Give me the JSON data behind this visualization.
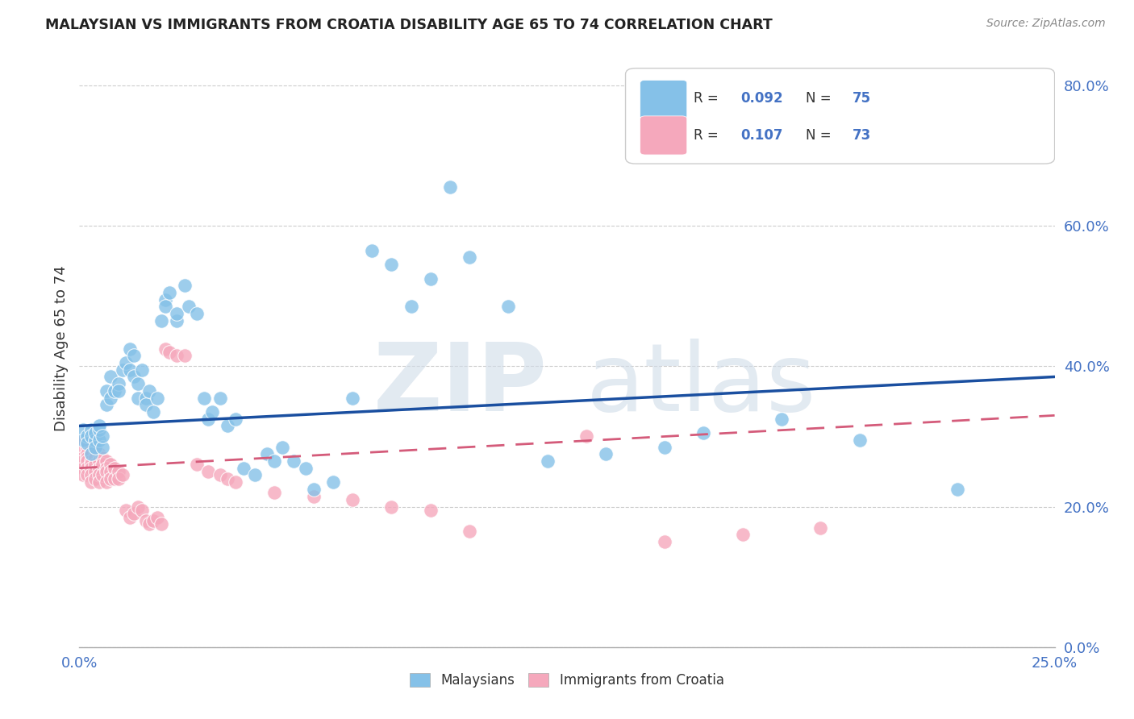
{
  "title": "MALAYSIAN VS IMMIGRANTS FROM CROATIA DISABILITY AGE 65 TO 74 CORRELATION CHART",
  "source": "Source: ZipAtlas.com",
  "ylabel_label": "Disability Age 65 to 74",
  "xlim": [
    0.0,
    0.25
  ],
  "ylim": [
    0.0,
    0.85
  ],
  "xticks": [
    0.0,
    0.25
  ],
  "yticks": [
    0.0,
    0.2,
    0.4,
    0.6,
    0.8
  ],
  "legend1_r": "0.092",
  "legend1_n": "75",
  "legend2_r": "0.107",
  "legend2_n": "73",
  "blue_color": "#85c1e8",
  "pink_color": "#f5a8bc",
  "line_blue": "#1a4fa0",
  "line_pink": "#d45b7a",
  "watermark_zip": "ZIP",
  "watermark_atlas": "atlas",
  "blue_scatter_x": [
    0.001,
    0.001,
    0.002,
    0.002,
    0.003,
    0.003,
    0.003,
    0.004,
    0.004,
    0.004,
    0.005,
    0.005,
    0.005,
    0.006,
    0.006,
    0.007,
    0.007,
    0.008,
    0.008,
    0.009,
    0.01,
    0.01,
    0.011,
    0.012,
    0.013,
    0.013,
    0.014,
    0.014,
    0.015,
    0.015,
    0.016,
    0.017,
    0.017,
    0.018,
    0.019,
    0.02,
    0.021,
    0.022,
    0.022,
    0.023,
    0.025,
    0.025,
    0.027,
    0.028,
    0.03,
    0.032,
    0.033,
    0.034,
    0.036,
    0.038,
    0.04,
    0.042,
    0.045,
    0.048,
    0.05,
    0.052,
    0.055,
    0.058,
    0.06,
    0.065,
    0.07,
    0.075,
    0.08,
    0.085,
    0.09,
    0.095,
    0.1,
    0.11,
    0.12,
    0.135,
    0.15,
    0.16,
    0.18,
    0.2,
    0.225
  ],
  "blue_scatter_y": [
    0.31,
    0.295,
    0.3,
    0.29,
    0.31,
    0.275,
    0.3,
    0.295,
    0.285,
    0.305,
    0.295,
    0.31,
    0.315,
    0.285,
    0.3,
    0.345,
    0.365,
    0.385,
    0.355,
    0.365,
    0.375,
    0.365,
    0.395,
    0.405,
    0.425,
    0.395,
    0.415,
    0.385,
    0.355,
    0.375,
    0.395,
    0.355,
    0.345,
    0.365,
    0.335,
    0.355,
    0.465,
    0.495,
    0.485,
    0.505,
    0.465,
    0.475,
    0.515,
    0.485,
    0.475,
    0.355,
    0.325,
    0.335,
    0.355,
    0.315,
    0.325,
    0.255,
    0.245,
    0.275,
    0.265,
    0.285,
    0.265,
    0.255,
    0.225,
    0.235,
    0.355,
    0.565,
    0.545,
    0.485,
    0.525,
    0.655,
    0.555,
    0.485,
    0.265,
    0.275,
    0.285,
    0.305,
    0.325,
    0.295,
    0.225
  ],
  "pink_scatter_x": [
    0.001,
    0.001,
    0.001,
    0.001,
    0.001,
    0.001,
    0.002,
    0.002,
    0.002,
    0.002,
    0.002,
    0.002,
    0.003,
    0.003,
    0.003,
    0.003,
    0.003,
    0.003,
    0.003,
    0.004,
    0.004,
    0.004,
    0.004,
    0.004,
    0.005,
    0.005,
    0.005,
    0.005,
    0.005,
    0.006,
    0.006,
    0.006,
    0.007,
    0.007,
    0.007,
    0.007,
    0.008,
    0.008,
    0.008,
    0.009,
    0.009,
    0.01,
    0.01,
    0.011,
    0.012,
    0.013,
    0.014,
    0.015,
    0.016,
    0.017,
    0.018,
    0.019,
    0.02,
    0.021,
    0.022,
    0.023,
    0.025,
    0.027,
    0.03,
    0.033,
    0.036,
    0.038,
    0.04,
    0.05,
    0.06,
    0.07,
    0.08,
    0.09,
    0.1,
    0.13,
    0.15,
    0.17,
    0.19
  ],
  "pink_scatter_y": [
    0.295,
    0.28,
    0.27,
    0.265,
    0.255,
    0.245,
    0.285,
    0.275,
    0.27,
    0.265,
    0.255,
    0.245,
    0.285,
    0.275,
    0.265,
    0.26,
    0.255,
    0.245,
    0.235,
    0.28,
    0.27,
    0.26,
    0.25,
    0.24,
    0.275,
    0.265,
    0.255,
    0.245,
    0.235,
    0.27,
    0.26,
    0.245,
    0.265,
    0.255,
    0.25,
    0.235,
    0.26,
    0.25,
    0.24,
    0.255,
    0.24,
    0.25,
    0.24,
    0.245,
    0.195,
    0.185,
    0.19,
    0.2,
    0.195,
    0.18,
    0.175,
    0.18,
    0.185,
    0.175,
    0.425,
    0.42,
    0.415,
    0.415,
    0.26,
    0.25,
    0.245,
    0.24,
    0.235,
    0.22,
    0.215,
    0.21,
    0.2,
    0.195,
    0.165,
    0.3,
    0.15,
    0.16,
    0.17
  ],
  "blue_line_x": [
    0.0,
    0.25
  ],
  "blue_line_y": [
    0.315,
    0.385
  ],
  "pink_line_x": [
    0.0,
    0.25
  ],
  "pink_line_y": [
    0.255,
    0.33
  ]
}
